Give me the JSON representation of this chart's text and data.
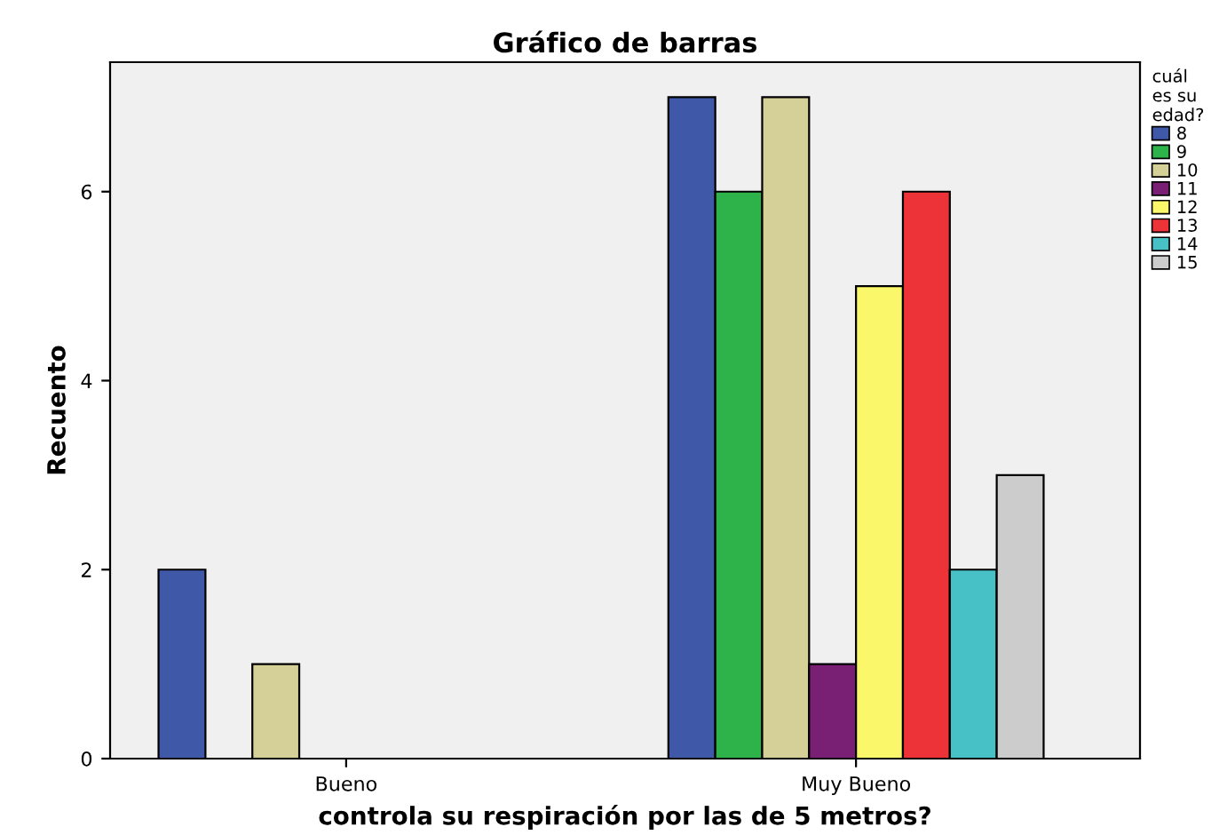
{
  "chart_data": {
    "type": "bar",
    "title": "Gráfico de barras",
    "xlabel": "controla su respiración por las de 5 metros?",
    "ylabel": "Recuento",
    "legend_title": "cuál\nes su\nedad?",
    "categories": [
      "Bueno",
      "Muy Bueno"
    ],
    "series": [
      {
        "name": "8",
        "color": "#3f58a8",
        "values": [
          2,
          7
        ]
      },
      {
        "name": "9",
        "color": "#2db34a",
        "values": [
          null,
          6
        ]
      },
      {
        "name": "10",
        "color": "#d5cf98",
        "values": [
          1,
          7
        ]
      },
      {
        "name": "11",
        "color": "#7a2074",
        "values": [
          null,
          1
        ]
      },
      {
        "name": "12",
        "color": "#fbf76b",
        "values": [
          null,
          5
        ]
      },
      {
        "name": "13",
        "color": "#ee3338",
        "values": [
          null,
          6
        ]
      },
      {
        "name": "14",
        "color": "#48c1c6",
        "values": [
          null,
          2
        ]
      },
      {
        "name": "15",
        "color": "#cccccc",
        "values": [
          null,
          3
        ]
      }
    ],
    "ylim": [
      0,
      7.37
    ],
    "yticks": [
      0,
      2,
      4,
      6
    ],
    "grid": false,
    "legend": "right"
  }
}
